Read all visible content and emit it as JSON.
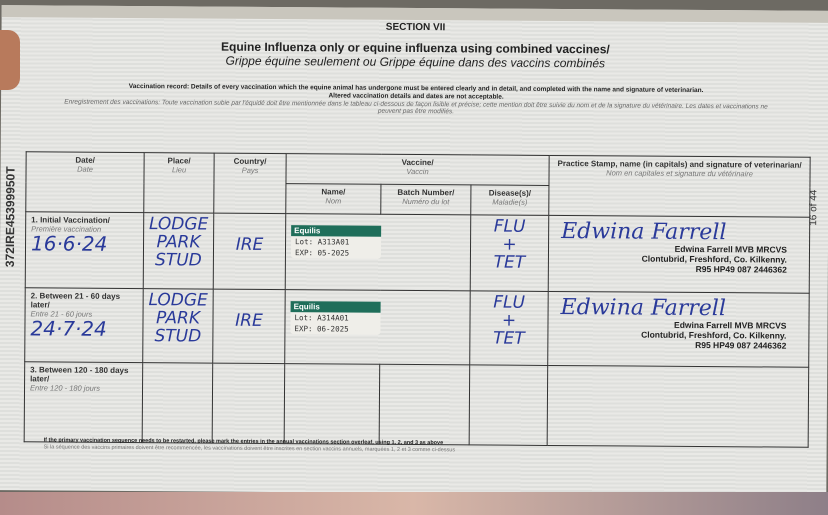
{
  "section": "SECTION VII",
  "title_en": "Equine Influenza only or equine influenza using combined vaccines/",
  "title_fr": "Grippe équine seulement ou Grippe équine dans des vaccins combinés",
  "intro_en": "Vaccination record: Details of every vaccination which the equine animal has undergone must be entered clearly and in detail, and completed with the name and signature of veterinarian.",
  "intro_en2": "Altered vaccination details and dates are not acceptable.",
  "intro_fr": "Enregistrement des vaccinations: Toute vaccination subie par l'équidé doit être mentionnée dans le tableau ci-dessous de façon lisible et précise; cette mention doit être suivie du nom et de la signature du vétérinaire. Les dates et vaccinations ne peuvent pas être modifiés.",
  "side_id": "372IRE45399950T",
  "page_count": "16 of 44",
  "headers": {
    "date": "Date/",
    "date_fr": "Date",
    "place": "Place/",
    "place_fr": "Lieu",
    "country": "Country/",
    "country_fr": "Pays",
    "vaccine": "Vaccine/",
    "vaccine_fr": "Vaccin",
    "name": "Name/",
    "name_fr": "Nom",
    "batch": "Batch Number/",
    "batch_fr": "Numéro du lot",
    "disease": "Disease(s)/",
    "disease_fr": "Maladie(s)",
    "stamp": "Practice Stamp, name (in capitals) and signature of veterinarian/",
    "stamp_fr": "Nom en capitales et signature du vétérinaire"
  },
  "rows": [
    {
      "label": "1. Initial Vaccination/",
      "label_fr": "Première vaccination",
      "date": "16·6·24",
      "place": "LODGE PARK STUD",
      "country": "IRE",
      "vaccine": "Equilis",
      "lot_label": "Lot:",
      "lot": "A313A01",
      "exp_label": "EXP:",
      "exp": "05-2025",
      "disease": "FLU + TET",
      "signature": "Edwina Farrell",
      "stamp1": "Edwina Farrell MVB MRCVS",
      "stamp2": "Clontubrid, Freshford, Co. Kilkenny.",
      "stamp3": "R95 HP49  087 2446362"
    },
    {
      "label": "2. Between 21 - 60 days later/",
      "label_fr": "Entre 21 - 60 jours",
      "date": "24·7·24",
      "place": "LODGE PARK STUD",
      "country": "IRE",
      "vaccine": "Equilis",
      "lot_label": "Lot:",
      "lot": "A314A01",
      "exp_label": "EXP:",
      "exp": "06-2025",
      "disease": "FLU + TET",
      "signature": "Edwina Farrell",
      "stamp1": "Edwina Farrell MVB MRCVS",
      "stamp2": "Clontubrid, Freshford, Co. Kilkenny.",
      "stamp3": "R95 HP49  087 2446362"
    },
    {
      "label": "3. Between 120 - 180 days later/",
      "label_fr": "Entre 120 - 180 jours"
    }
  ],
  "footnote_en": "If the primary vaccination sequence needs to be restarted, please mark the entries in the annual vaccinations section overleaf, using 1, 2, and 3 as above",
  "footnote_fr": "Si la séquence des vaccins primaires doivent être recommencée, les vaccinations doivent être inscrites en section vaccins annuels, marquées 1, 2 et 3 comme ci-dessus"
}
